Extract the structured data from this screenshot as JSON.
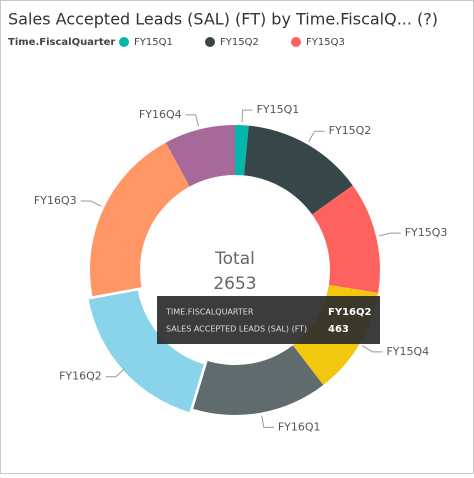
{
  "chart_data": {
    "type": "donut",
    "title": "Sales Accepted Leads (SAL) (FT) by Time.FiscalQ... (?)",
    "legend_title": "Time.FiscalQuarter",
    "categories": [
      "FY15Q1",
      "FY15Q2",
      "FY15Q3",
      "FY15Q4",
      "FY16Q1",
      "FY16Q2",
      "FY16Q3",
      "FY16Q4"
    ],
    "values": [
      40,
      360,
      330,
      320,
      400,
      463,
      530,
      210
    ],
    "colors": [
      "#01B8AA",
      "#374649",
      "#FD625E",
      "#F2C80F",
      "#5F6B6D",
      "#8AD4EB",
      "#FE9666",
      "#A66999"
    ],
    "total_label": "Total",
    "total": 2653,
    "tooltip": {
      "category_label": "TIME.FISCALQUARTER",
      "value_label": "SALES ACCEPTED LEADS (SAL) (FT)",
      "index": 5
    }
  }
}
